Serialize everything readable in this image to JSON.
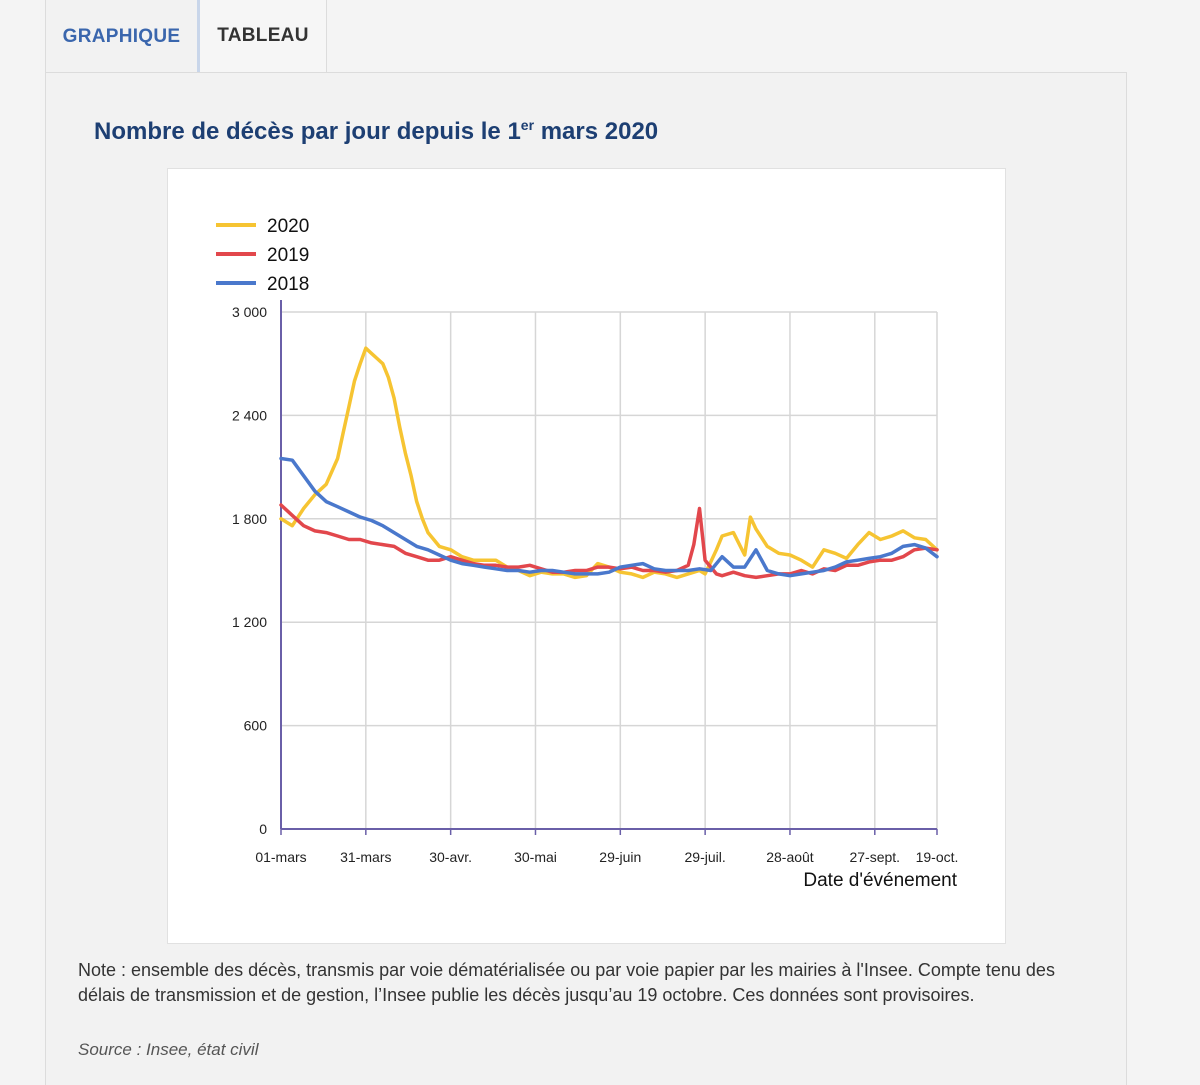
{
  "tabs": [
    {
      "label": "GRAPHIQUE",
      "active": true
    },
    {
      "label": "TABLEAU",
      "active": false
    }
  ],
  "title_main": "Nombre de décès par jour depuis le 1",
  "title_sup": "er",
  "title_tail": " mars 2020",
  "note": "Note : ensemble des décès, transmis par voie dématérialisée ou par voie papier par les mairies à l'Insee. Compte tenu des délais de transmission et de gestion, l’Insee publie les décès jusqu’au 19 octobre. Ces données sont provisoires.",
  "source": "Source : Insee, état civil",
  "colors": {
    "2020": "#f6c432",
    "2019": "#e2474c",
    "2018": "#4a78cc",
    "axis": "#6a5fa8",
    "grid": "#d6d6d6"
  },
  "chart_data": {
    "type": "line",
    "title": "Nombre de décès par jour depuis le 1er mars 2020",
    "xlabel": "Date d'événement",
    "ylabel": "",
    "x_ticks": [
      {
        "day": 0,
        "label": "01-mars"
      },
      {
        "day": 30,
        "label": "31-mars"
      },
      {
        "day": 60,
        "label": "30-avr."
      },
      {
        "day": 90,
        "label": "30-mai"
      },
      {
        "day": 120,
        "label": "29-juin"
      },
      {
        "day": 150,
        "label": "29-juil."
      },
      {
        "day": 180,
        "label": "28-août"
      },
      {
        "day": 210,
        "label": "27-sept."
      },
      {
        "day": 232,
        "label": "19-oct."
      }
    ],
    "y_ticks": [
      {
        "value": 0,
        "label": "0"
      },
      {
        "value": 600,
        "label": "600"
      },
      {
        "value": 1200,
        "label": "1 200"
      },
      {
        "value": 1800,
        "label": "1 800"
      },
      {
        "value": 2400,
        "label": "2 400"
      },
      {
        "value": 3000,
        "label": "3 000"
      }
    ],
    "xlim": [
      0,
      232
    ],
    "ylim": [
      0,
      3000
    ],
    "legend_position": "top-left",
    "grid": true,
    "series": [
      {
        "name": "2020",
        "x": [
          0,
          4,
          8,
          12,
          16,
          20,
          22,
          24,
          26,
          28,
          30,
          32,
          34,
          36,
          38,
          40,
          42,
          44,
          46,
          48,
          50,
          52,
          54,
          56,
          60,
          64,
          68,
          72,
          76,
          80,
          84,
          88,
          92,
          96,
          100,
          104,
          108,
          112,
          116,
          120,
          124,
          128,
          132,
          136,
          140,
          144,
          148,
          150,
          152,
          154,
          156,
          160,
          164,
          166,
          168,
          172,
          176,
          180,
          184,
          188,
          192,
          196,
          200,
          204,
          208,
          212,
          216,
          220,
          224,
          228,
          232
        ],
        "y": [
          1800,
          1760,
          1860,
          1940,
          2000,
          2150,
          2300,
          2450,
          2600,
          2700,
          2790,
          2760,
          2730,
          2700,
          2620,
          2500,
          2330,
          2180,
          2050,
          1900,
          1800,
          1720,
          1680,
          1640,
          1620,
          1580,
          1560,
          1560,
          1560,
          1520,
          1500,
          1470,
          1490,
          1480,
          1480,
          1460,
          1470,
          1540,
          1520,
          1490,
          1480,
          1460,
          1490,
          1480,
          1460,
          1480,
          1500,
          1480,
          1550,
          1620,
          1700,
          1720,
          1590,
          1810,
          1740,
          1640,
          1600,
          1590,
          1560,
          1520,
          1620,
          1600,
          1570,
          1650,
          1720,
          1680,
          1700,
          1730,
          1690,
          1680,
          1620
        ]
      },
      {
        "name": "2019",
        "x": [
          0,
          4,
          8,
          12,
          16,
          20,
          24,
          28,
          32,
          36,
          40,
          44,
          48,
          52,
          56,
          60,
          64,
          68,
          72,
          76,
          80,
          84,
          88,
          92,
          96,
          100,
          104,
          108,
          112,
          116,
          120,
          124,
          128,
          132,
          136,
          140,
          144,
          146,
          148,
          150,
          152,
          154,
          156,
          160,
          164,
          168,
          172,
          176,
          180,
          184,
          188,
          192,
          196,
          200,
          204,
          208,
          212,
          216,
          220,
          224,
          228,
          232
        ],
        "y": [
          1880,
          1820,
          1760,
          1730,
          1720,
          1700,
          1680,
          1680,
          1660,
          1650,
          1640,
          1600,
          1580,
          1560,
          1560,
          1580,
          1560,
          1540,
          1530,
          1530,
          1520,
          1520,
          1530,
          1510,
          1490,
          1490,
          1500,
          1500,
          1520,
          1520,
          1510,
          1520,
          1500,
          1500,
          1490,
          1500,
          1530,
          1650,
          1860,
          1560,
          1520,
          1480,
          1470,
          1490,
          1470,
          1460,
          1470,
          1480,
          1480,
          1500,
          1480,
          1510,
          1500,
          1530,
          1530,
          1550,
          1560,
          1560,
          1580,
          1620,
          1630,
          1620
        ]
      },
      {
        "name": "2018",
        "x": [
          0,
          4,
          8,
          12,
          16,
          20,
          24,
          28,
          32,
          36,
          40,
          44,
          48,
          52,
          56,
          60,
          64,
          68,
          72,
          76,
          80,
          84,
          88,
          92,
          96,
          100,
          104,
          108,
          112,
          116,
          120,
          124,
          128,
          132,
          136,
          140,
          144,
          148,
          152,
          156,
          160,
          164,
          168,
          172,
          176,
          180,
          184,
          188,
          192,
          196,
          200,
          204,
          208,
          212,
          216,
          220,
          224,
          228,
          232
        ],
        "y": [
          2150,
          2140,
          2050,
          1960,
          1900,
          1870,
          1840,
          1810,
          1790,
          1760,
          1720,
          1680,
          1640,
          1620,
          1590,
          1560,
          1540,
          1530,
          1520,
          1510,
          1500,
          1500,
          1490,
          1500,
          1500,
          1490,
          1480,
          1480,
          1480,
          1490,
          1520,
          1530,
          1540,
          1510,
          1500,
          1500,
          1500,
          1510,
          1500,
          1580,
          1520,
          1520,
          1620,
          1500,
          1480,
          1470,
          1480,
          1490,
          1500,
          1520,
          1550,
          1560,
          1570,
          1580,
          1600,
          1640,
          1650,
          1630,
          1580
        ]
      }
    ]
  }
}
